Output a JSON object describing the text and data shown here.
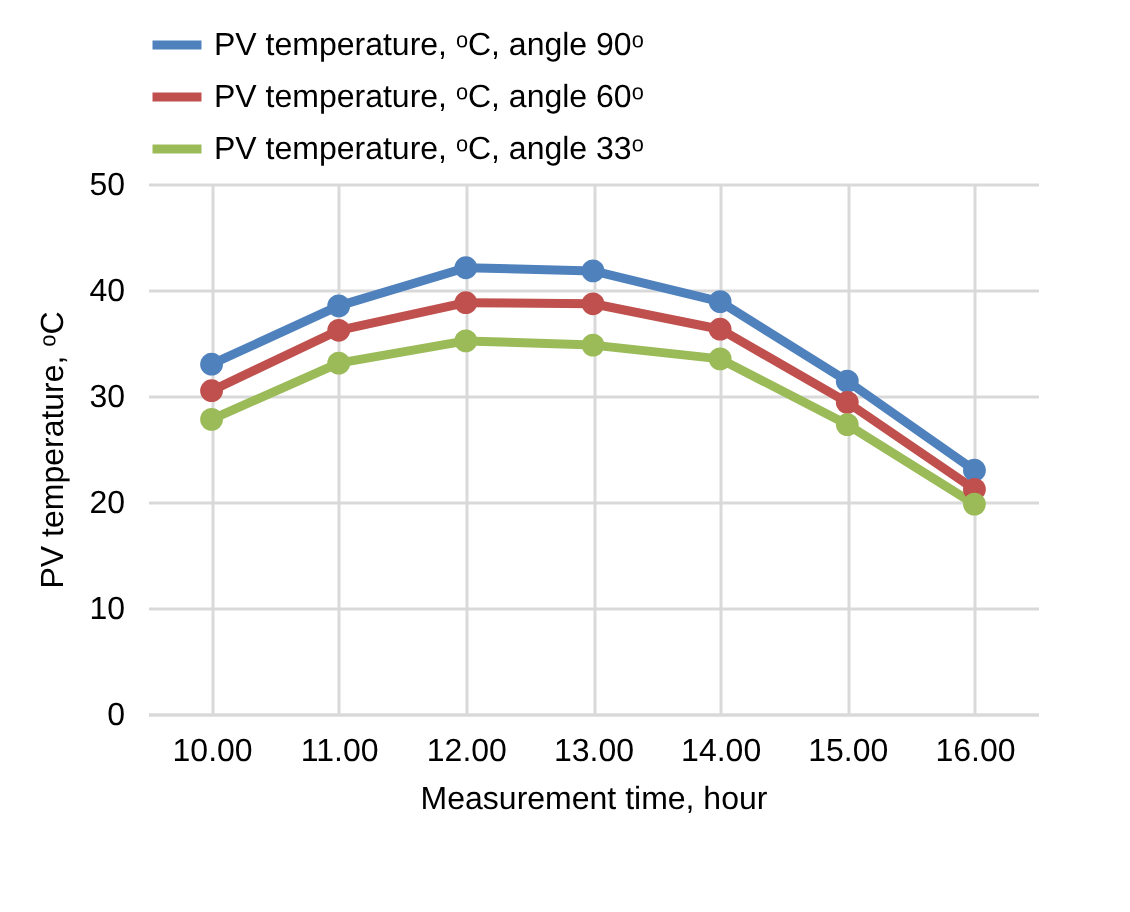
{
  "chart_data": {
    "type": "line",
    "xlabel": "Measurement time, hour",
    "ylabel": "PV temperature, ᵒC",
    "categories": [
      "10.00",
      "11.00",
      "12.00",
      "13.00",
      "14.00",
      "15.00",
      "16.00"
    ],
    "series": [
      {
        "name": "PV temperature, ᵒC, angle 90ᵒ",
        "color": "#4f81bd",
        "values": [
          33.0,
          38.5,
          42.1,
          41.8,
          38.9,
          31.4,
          23.0
        ]
      },
      {
        "name": "PV temperature, ᵒC, angle 60ᵒ",
        "color": "#c0504d",
        "values": [
          30.5,
          36.2,
          38.8,
          38.7,
          36.3,
          29.4,
          21.2
        ]
      },
      {
        "name": "PV temperature, ᵒC, angle 33ᵒ",
        "color": "#9bbb59",
        "values": [
          27.8,
          33.1,
          35.2,
          34.8,
          33.5,
          27.3,
          19.8
        ]
      }
    ],
    "ylim": [
      0,
      50
    ],
    "yticks": [
      0,
      10,
      20,
      30,
      40,
      50
    ],
    "grid": true,
    "legend": "top",
    "marker": "circle",
    "line_style": "solid"
  }
}
